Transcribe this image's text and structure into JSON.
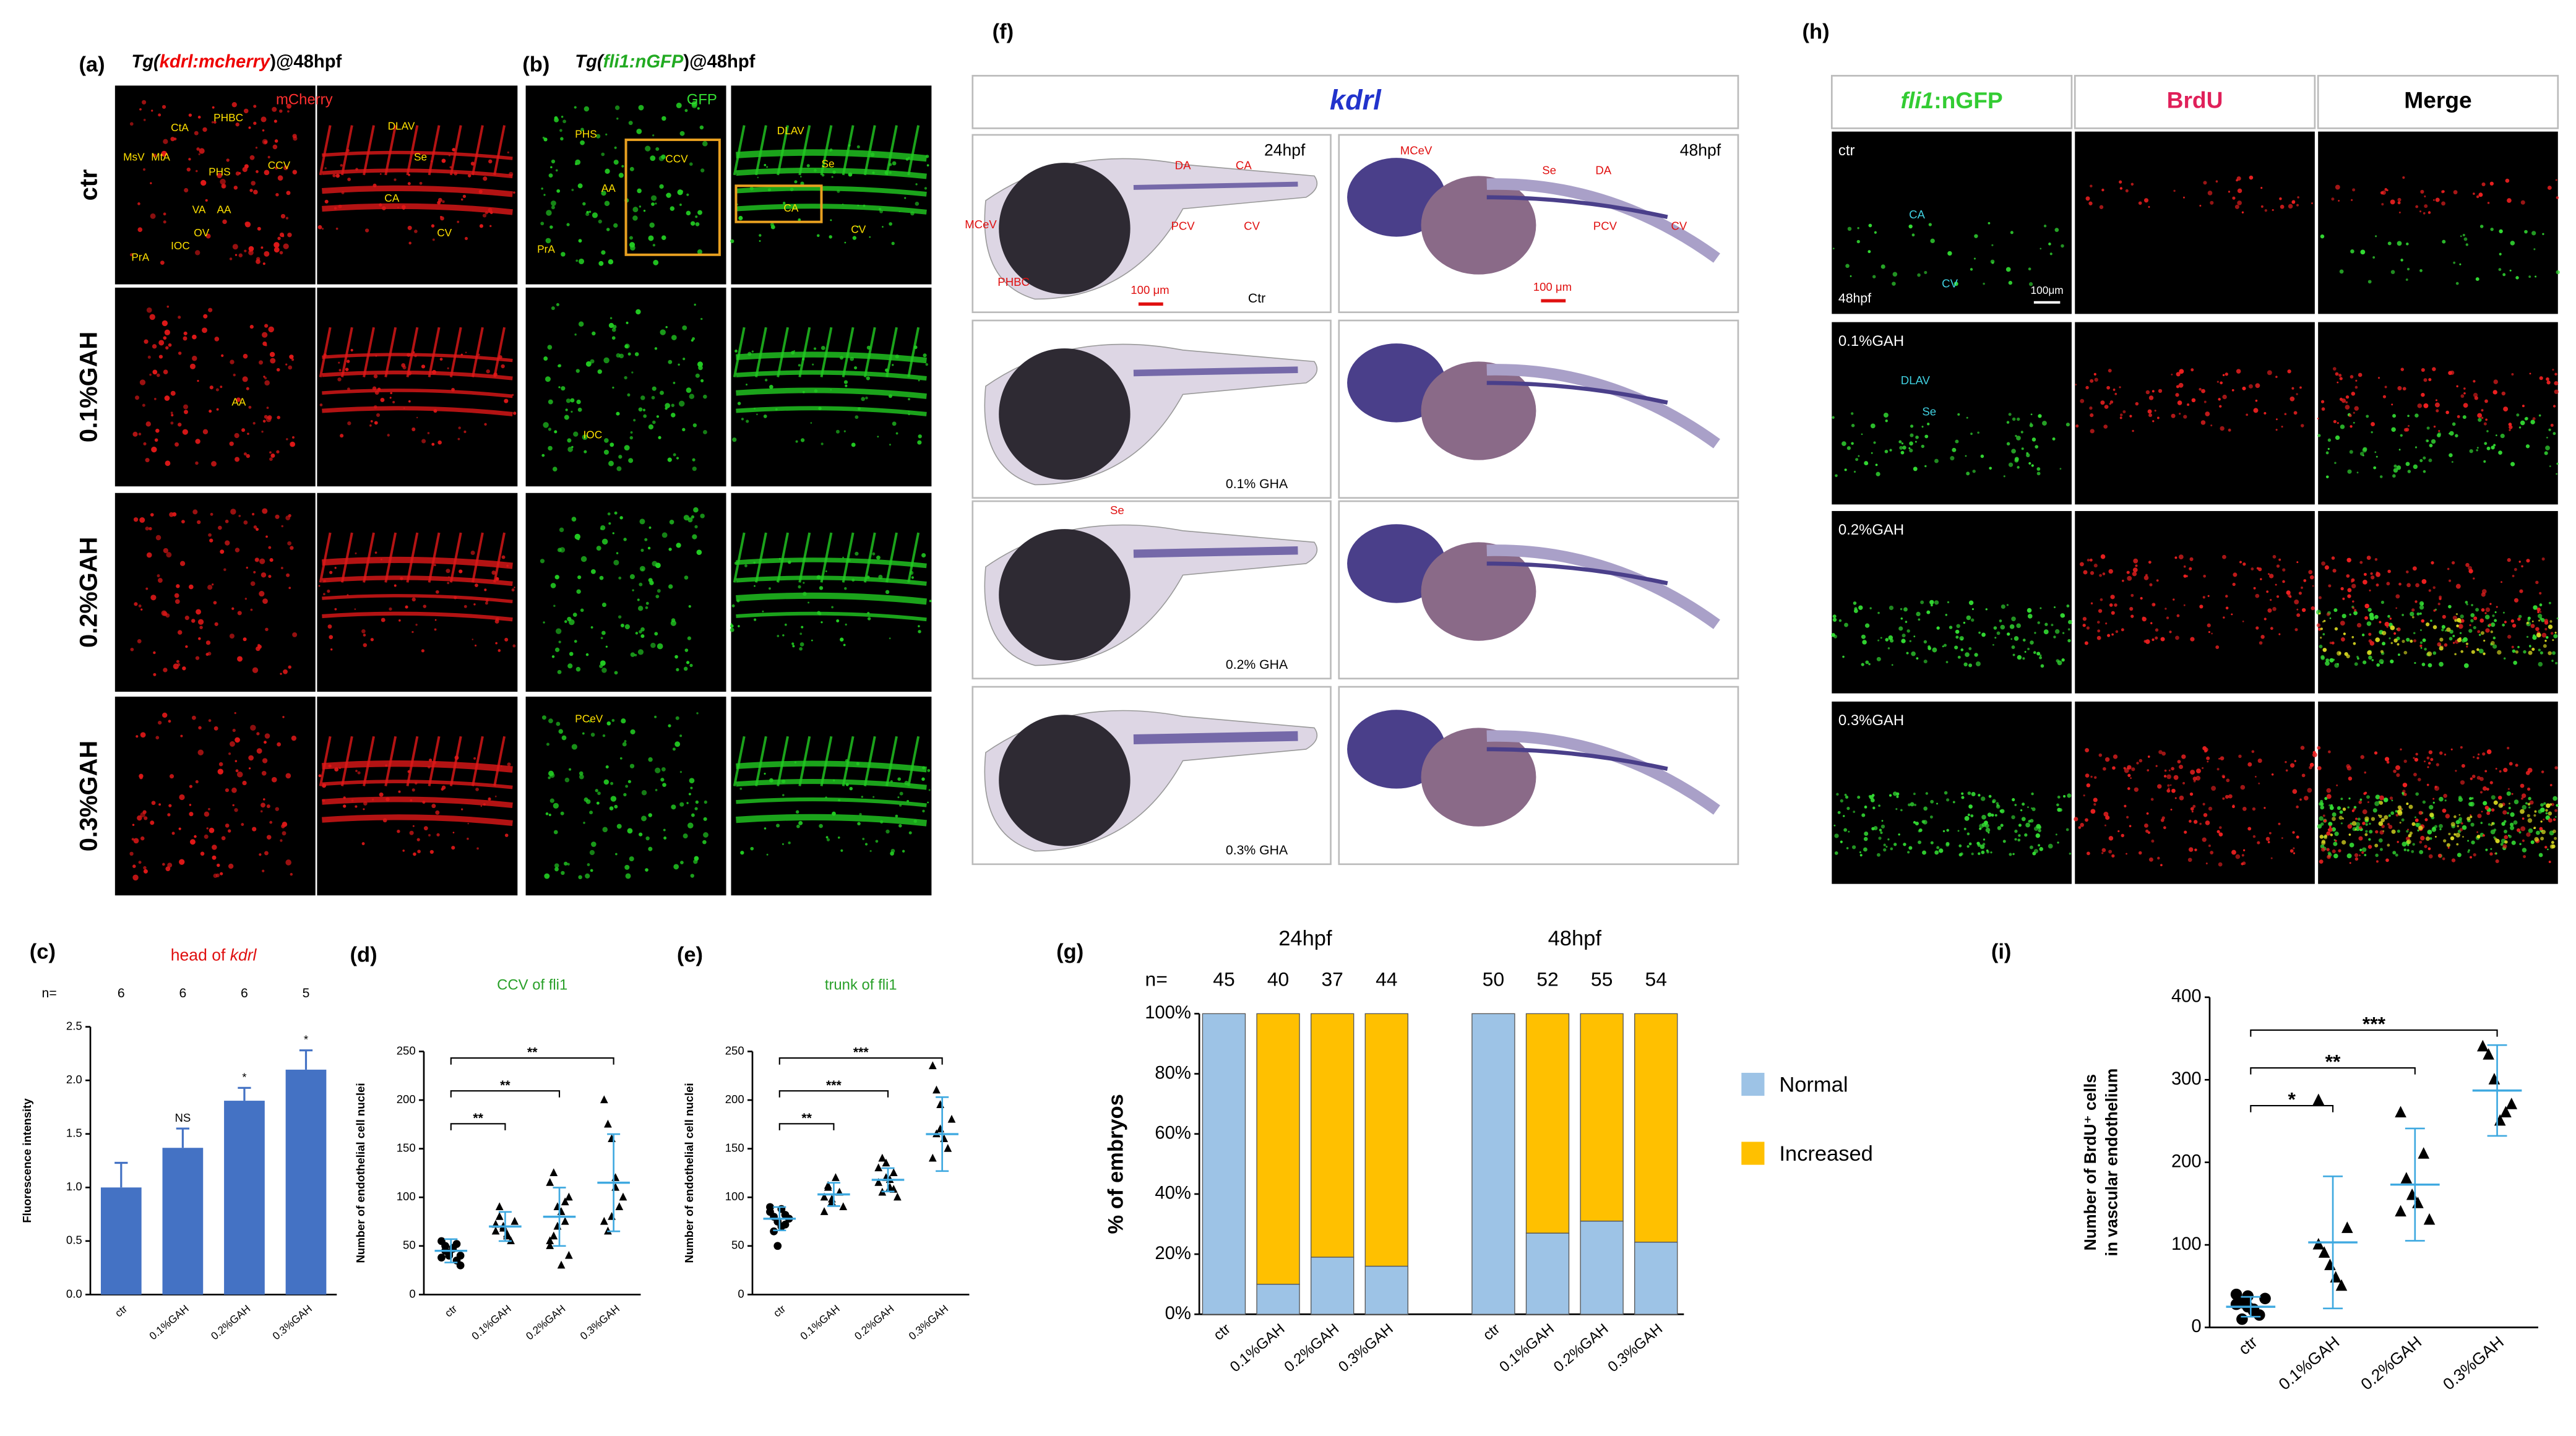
{
  "figure": {
    "a": {
      "label": "(a)",
      "title": [
        "Tg(",
        "kdrl:mcherry",
        ")@48hpf"
      ],
      "channel": "mCherry",
      "rows": [
        "ctr",
        "0.1%GAH",
        "0.2%GAH",
        "0.3%GAH"
      ],
      "annotations": [
        "MsV",
        "MtA",
        "CtA",
        "PHBC",
        "CCV",
        "PHS",
        "VA",
        "AA",
        "OV",
        "IOC",
        "PrA",
        "DLAV",
        "Se",
        "CA",
        "CV",
        "AA"
      ]
    },
    "b": {
      "label": "(b)",
      "title": [
        "Tg(",
        "fli1:nGFP",
        ")@48hpf"
      ],
      "channel": "GFP",
      "annotations": [
        "PHS",
        "CCV",
        "AA",
        "PrA",
        "DLAV",
        "Se",
        "CA",
        "CV",
        "IOC",
        "PCeV"
      ]
    },
    "f": {
      "label": "(f)",
      "gene": "kdrl",
      "stages": [
        "24hpf",
        "48hpf"
      ],
      "annotations": [
        "DA",
        "CA",
        "MCeV",
        "PHBC",
        "PCV",
        "CV",
        "MCeV",
        "Se",
        "DA",
        "PCV",
        "CV",
        "Se"
      ],
      "scale_bars": [
        "100 μm",
        "100 μm"
      ],
      "conditions": [
        "Ctr",
        "0.1% GHA",
        "0.2% GHA",
        "0.3% GHA"
      ]
    },
    "h": {
      "label": "(h)",
      "columns": [
        [
          "fli1",
          ":nGFP"
        ],
        "BrdU",
        "Merge"
      ],
      "rows": [
        "ctr",
        "0.1%GAH",
        "0.2%GAH",
        "0.3%GAH"
      ],
      "stage": "48hpf",
      "scale_bar": "100μm",
      "annotations": [
        "CA",
        "CV",
        "DLAV",
        "Se"
      ]
    }
  },
  "chart_data": [
    {
      "type": "bar",
      "label": "(c)",
      "title_parts": [
        "head of ",
        "kdrl"
      ],
      "ylabel": "Fluorescence intensity",
      "categories": [
        "ctr",
        "0.1%GAH",
        "0.2%GAH",
        "0.3%GAH"
      ],
      "values": [
        1.0,
        1.37,
        1.81,
        2.1
      ],
      "errors": [
        0.23,
        0.18,
        0.12,
        0.18
      ],
      "n_label": "n=",
      "n": [
        6,
        6,
        6,
        5
      ],
      "significance": [
        null,
        "NS",
        "*",
        "*"
      ],
      "color": "#4472c4",
      "ylim": [
        0,
        2.5
      ],
      "yticks": [
        {
          "value": 0,
          "label": "0.0"
        },
        0.5,
        {
          "value": 1,
          "label": "1.0"
        },
        1.5,
        {
          "value": 2,
          "label": "2.0"
        },
        2.5
      ]
    },
    {
      "type": "scatter",
      "label": "(d)",
      "title": "CCV of fli1",
      "ylabel": "Number of endothelial cell nuclei",
      "categories": [
        "ctr",
        "0.1%GAH",
        "0.2%GAH",
        "0.3%GAH"
      ],
      "markers": [
        "circle",
        "triangle",
        "triangle",
        "triangle"
      ],
      "values": [
        [
          55,
          45,
          40,
          48,
          35,
          30,
          38,
          50,
          42,
          47,
          52,
          40
        ],
        [
          65,
          80,
          70,
          60,
          55,
          75,
          72,
          90,
          68,
          62
        ],
        [
          50,
          60,
          70,
          85,
          95,
          100,
          115,
          125,
          90,
          30,
          75,
          40,
          55
        ],
        [
          200,
          175,
          160,
          110,
          90,
          100,
          75,
          65,
          80,
          120
        ]
      ],
      "mean": [
        45,
        70,
        80,
        115
      ],
      "sd": [
        12,
        15,
        30,
        50
      ],
      "significance": [
        "**",
        "**",
        "**"
      ],
      "color": "#3fa9e0",
      "ylim": [
        0,
        250
      ],
      "yticks": [
        0,
        50,
        100,
        150,
        200,
        250
      ]
    },
    {
      "type": "scatter",
      "label": "(e)",
      "title": "trunk of fli1",
      "ylabel": "Number of endothelial cell nuclei",
      "categories": [
        "ctr",
        "0.1%GAH",
        "0.2%GAH",
        "0.3%GAH"
      ],
      "markers": [
        "circle",
        "triangle",
        "triangle",
        "triangle"
      ],
      "values": [
        [
          85,
          80,
          75,
          70,
          82,
          78,
          90,
          65,
          50,
          88,
          72
        ],
        [
          100,
          110,
          95,
          120,
          105,
          90,
          85,
          112,
          98
        ],
        [
          130,
          140,
          120,
          110,
          125,
          100,
          115,
          105,
          135,
          118,
          108
        ],
        [
          235,
          210,
          170,
          160,
          150,
          180,
          140,
          165,
          195
        ]
      ],
      "mean": [
        78,
        103,
        118,
        165
      ],
      "sd": [
        12,
        12,
        12,
        38
      ],
      "significance": [
        "**",
        "***",
        "***"
      ],
      "color": "#3fa9e0",
      "ylim": [
        0,
        250
      ],
      "yticks": [
        0,
        50,
        100,
        150,
        200,
        250
      ]
    },
    {
      "type": "stacked_bar",
      "label": "(g)",
      "ylabel": "% of embryos",
      "groups": [
        "24hpf",
        "48hpf"
      ],
      "categories": [
        "ctr",
        "0.1%GAH",
        "0.2%GAH",
        "0.3%GAH",
        "ctr",
        "0.1%GAH",
        "0.2%GAH",
        "0.3%GAH"
      ],
      "n_label": "n=",
      "n": [
        45,
        40,
        37,
        44,
        50,
        52,
        55,
        54
      ],
      "series": [
        {
          "name": "Normal",
          "color": "#9dc3e6",
          "values": [
            100,
            10,
            19,
            16,
            100,
            27,
            31,
            24
          ]
        },
        {
          "name": "Increased",
          "color": "#ffc000",
          "values": [
            0,
            90,
            81,
            84,
            0,
            73,
            69,
            76
          ]
        }
      ],
      "ylim": [
        0,
        100
      ],
      "yticks": [
        {
          "value": 0,
          "label": "0%"
        },
        {
          "value": 20,
          "label": "20%"
        },
        {
          "value": 40,
          "label": "40%"
        },
        {
          "value": 60,
          "label": "60%"
        },
        {
          "value": 80,
          "label": "80%"
        },
        {
          "value": 100,
          "label": "100%"
        }
      ],
      "legend": "right"
    },
    {
      "type": "scatter",
      "label": "(i)",
      "ylabel": [
        "Number of BrdU⁺ cells",
        "in vascular endothelium"
      ],
      "categories": [
        "ctr",
        "0.1%GAH",
        "0.2%GAH",
        "0.3%GAH"
      ],
      "markers": [
        "circle",
        "triangle",
        "triangle",
        "triangle"
      ],
      "values": [
        [
          40,
          30,
          25,
          20,
          15,
          35,
          28,
          10,
          38,
          22
        ],
        [
          275,
          90,
          75,
          60,
          50,
          120,
          100
        ],
        [
          260,
          180,
          160,
          150,
          210,
          130,
          140
        ],
        [
          340,
          330,
          300,
          250,
          260,
          270
        ]
      ],
      "mean": [
        25,
        103,
        173,
        287
      ],
      "sd": [
        12,
        80,
        68,
        55
      ],
      "significance": [
        "*",
        "**",
        "***"
      ],
      "color": "#3fa9e0",
      "ylim": [
        0,
        400
      ],
      "yticks": [
        0,
        100,
        200,
        300,
        400
      ]
    }
  ]
}
